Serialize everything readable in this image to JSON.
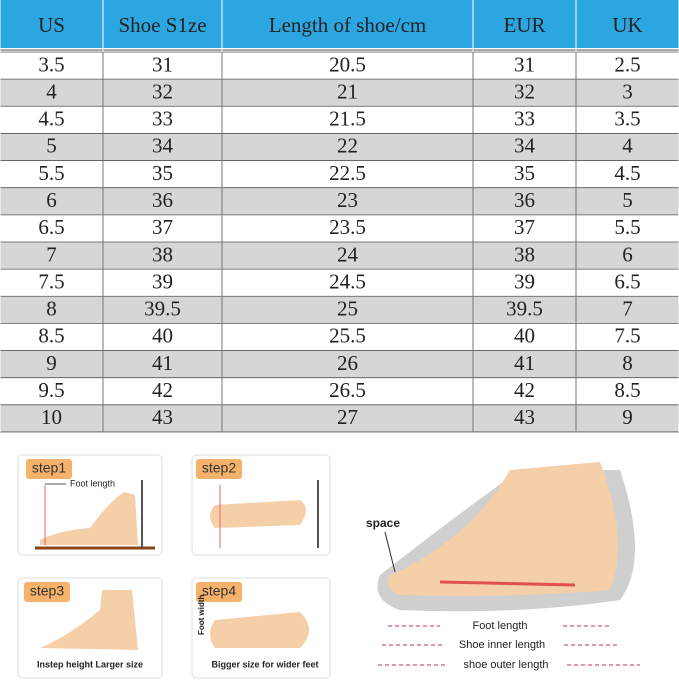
{
  "table": {
    "header": [
      "US",
      "Shoe S1ze",
      "Length of shoe/cm",
      "EUR",
      "UK"
    ],
    "rows": [
      [
        "3.5",
        "31",
        "20.5",
        "31",
        "2.5"
      ],
      [
        "4",
        "32",
        "21",
        "32",
        "3"
      ],
      [
        "4.5",
        "33",
        "21.5",
        "33",
        "3.5"
      ],
      [
        "5",
        "34",
        "22",
        "34",
        "4"
      ],
      [
        "5.5",
        "35",
        "22.5",
        "35",
        "4.5"
      ],
      [
        "6",
        "36",
        "23",
        "36",
        "5"
      ],
      [
        "6.5",
        "37",
        "23.5",
        "37",
        "5.5"
      ],
      [
        "7",
        "38",
        "24",
        "38",
        "6"
      ],
      [
        "7.5",
        "39",
        "24.5",
        "39",
        "6.5"
      ],
      [
        "8",
        "39.5",
        "25",
        "39.5",
        "7"
      ],
      [
        "8.5",
        "40",
        "25.5",
        "40",
        "7.5"
      ],
      [
        "9",
        "41",
        "26",
        "41",
        "8"
      ],
      [
        "9.5",
        "42",
        "26.5",
        "42",
        "8.5"
      ],
      [
        "10",
        "43",
        "27",
        "43",
        "9"
      ]
    ]
  },
  "steps": [
    {
      "label": "step1",
      "note": "Foot length"
    },
    {
      "label": "step2"
    },
    {
      "label": "step3",
      "note": "Instep height Larger size"
    },
    {
      "label": "step4",
      "side": "Foot width",
      "note": "Bigger size for wider feet"
    }
  ],
  "diagram": {
    "space": "space",
    "foot": "Foot length",
    "inner": "Shoe inner length",
    "outer": "shoe outer length"
  }
}
